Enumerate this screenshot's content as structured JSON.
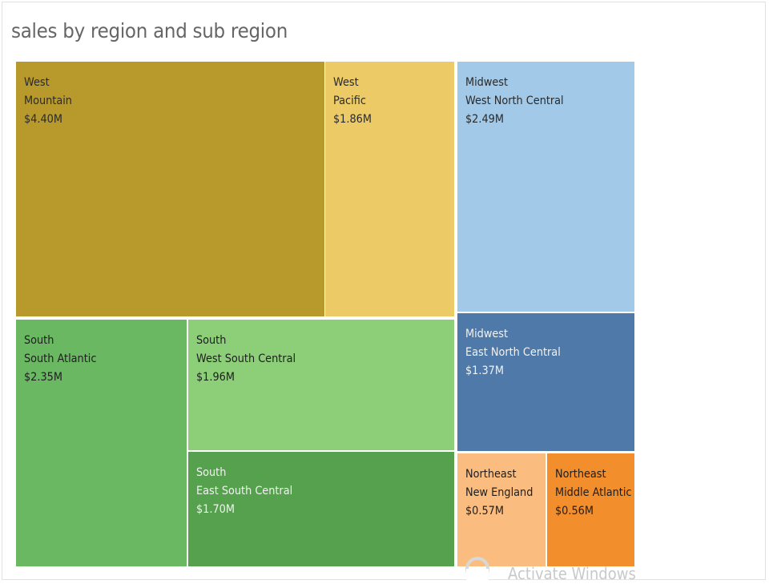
{
  "chart_data": {
    "type": "treemap",
    "title": "sales by region and sub region",
    "tiles": [
      {
        "region": "West",
        "sub_region": "Mountain",
        "label": "$4.40M",
        "value": 4.4,
        "color": "#b89a2c",
        "text_color": "#2a2a2a"
      },
      {
        "region": "West",
        "sub_region": "Pacific",
        "label": "$1.86M",
        "value": 1.86,
        "color": "#eccb66",
        "text_color": "#2a2a2a"
      },
      {
        "region": "Midwest",
        "sub_region": "West North Central",
        "label": "$2.49M",
        "value": 2.49,
        "color": "#a2c9e8",
        "text_color": "#2a2a2a"
      },
      {
        "region": "South",
        "sub_region": "South Atlantic",
        "label": "$2.35M",
        "value": 2.35,
        "color": "#6ab862",
        "text_color": "#1e1e1e"
      },
      {
        "region": "South",
        "sub_region": "West South Central",
        "label": "$1.96M",
        "value": 1.96,
        "color": "#8ccf78",
        "text_color": "#1e1e1e"
      },
      {
        "region": "Midwest",
        "sub_region": "East North Central",
        "label": "$1.37M",
        "value": 1.37,
        "color": "#4e79a8",
        "text_color": "#f2f2f2"
      },
      {
        "region": "South",
        "sub_region": "East South Central",
        "label": "$1.70M",
        "value": 1.7,
        "color": "#56a14e",
        "text_color": "#f2f2f2"
      },
      {
        "region": "Northeast",
        "sub_region": "New England",
        "label": "$0.57M",
        "value": 0.57,
        "color": "#fbbd7f",
        "text_color": "#1e1e1e"
      },
      {
        "region": "Northeast",
        "sub_region": "Middle Atlantic",
        "label": "$0.56M",
        "value": 0.56,
        "color": "#f28e2b",
        "text_color": "#1e1e1e"
      }
    ]
  },
  "watermark": {
    "text": "Activate Windows"
  }
}
